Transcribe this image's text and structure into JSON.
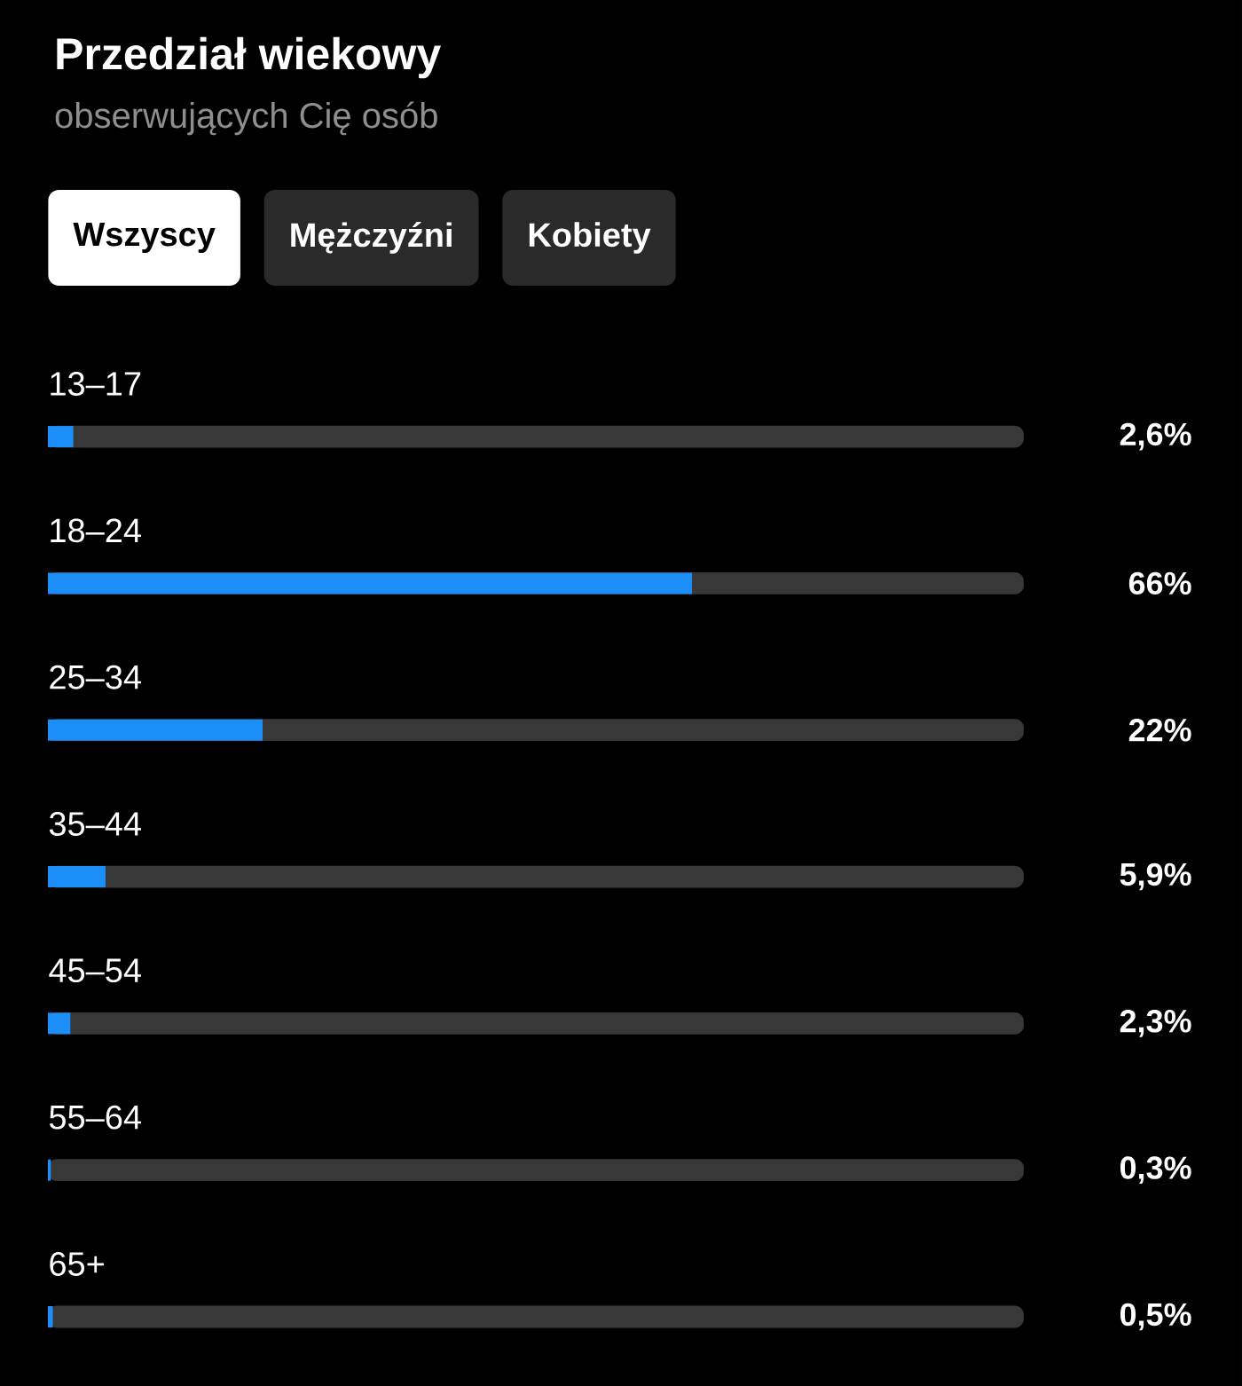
{
  "chart_data": {
    "type": "bar",
    "orientation": "horizontal",
    "title": "Przedział wiekowy",
    "subtitle": "obserwujących Cię osób",
    "annotations": [
      "Wszyscy",
      "Mężczyźni",
      "Kobiety"
    ],
    "categories": [
      "13–17",
      "18–24",
      "25–34",
      "35–44",
      "45–54",
      "55–64",
      "65+"
    ],
    "values": [
      2.6,
      66,
      22,
      5.9,
      2.3,
      0.3,
      0.5
    ],
    "value_labels": [
      "2,6%",
      "66%",
      "22%",
      "5,9%",
      "2,3%",
      "0,3%",
      "0,5%"
    ],
    "color": "#1b8ef8",
    "xlim": [
      0,
      100
    ]
  }
}
